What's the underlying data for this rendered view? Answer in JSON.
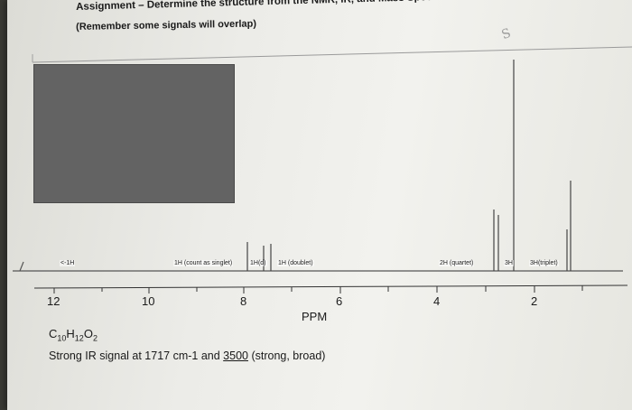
{
  "header": {
    "title": "Assignment – Determine the structure from the NMR, IR, and Mass Spectro...",
    "subtitle": "(Remember some signals will overlap)",
    "signature": "S"
  },
  "spectrum": {
    "axis_label": "PPM",
    "ticks": [
      "12",
      "10",
      "8",
      "6",
      "4",
      "2"
    ],
    "peak_labels": [
      {
        "text": "<-1H"
      },
      {
        "text": "1H (count as singlet)"
      },
      {
        "text": "1H(d)"
      },
      {
        "text": "1H (doublet)"
      },
      {
        "text": "2H (quartet)"
      },
      {
        "text": "3H"
      },
      {
        "text": "3H(triplet)"
      }
    ]
  },
  "footer": {
    "formula": {
      "C": "C",
      "c_count": "10",
      "H": "H",
      "h_count": "12",
      "O": "O",
      "o_count": "2"
    },
    "ir_prefix": "Strong IR signal at 1717 cm-1 and ",
    "ir_underlined": "3500",
    "ir_suffix": " (strong, broad)"
  },
  "colors": {
    "paper": "#f0f0ec",
    "ink": "#1a1a1a",
    "redaction": "#636363"
  }
}
